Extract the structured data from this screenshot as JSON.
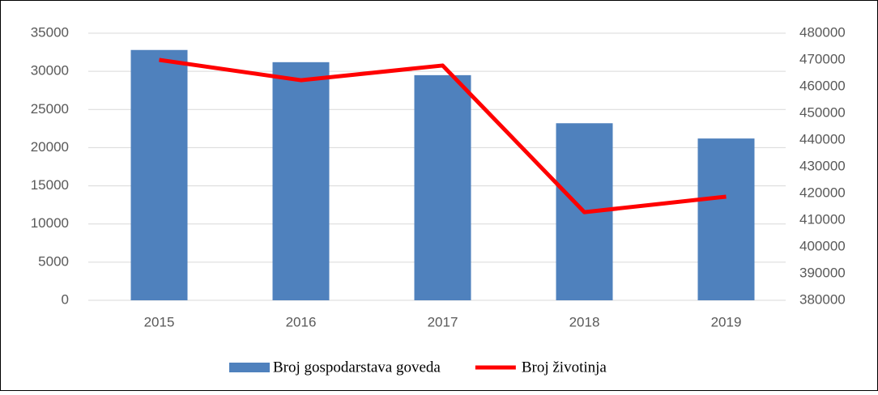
{
  "chart_data": {
    "type": "bar_line",
    "categories": [
      "2015",
      "2016",
      "2017",
      "2018",
      "2019"
    ],
    "series": [
      {
        "name": "Broj gospodarstava goveda",
        "type": "bar",
        "color": "#4f81bd",
        "values": [
          32800,
          31200,
          29500,
          23200,
          21200
        ]
      },
      {
        "name": "Broj životinja",
        "type": "line",
        "axis": "y2",
        "color": "#ff0000",
        "values": [
          470000,
          462400,
          467900,
          413000,
          418800
        ]
      }
    ],
    "ylim": [
      0,
      35000
    ],
    "yticks": [
      0,
      5000,
      10000,
      15000,
      20000,
      25000,
      30000,
      35000
    ],
    "y2lim": [
      380000,
      480000
    ],
    "y2ticks": [
      380000,
      390000,
      400000,
      410000,
      420000,
      430000,
      440000,
      450000,
      460000,
      470000,
      480000
    ],
    "grid": true,
    "legend": "bottom"
  }
}
